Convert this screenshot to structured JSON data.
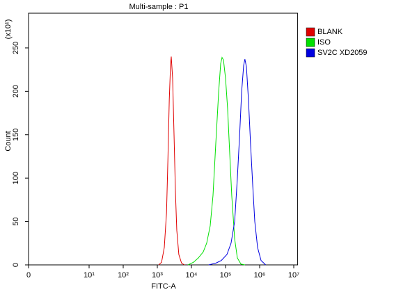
{
  "chart_data": {
    "type": "line",
    "title": "Multi-sample : P1",
    "y_multiplier": "(x10¹)",
    "x_label": "FITC-A",
    "y_label": "Count",
    "xscale": "log",
    "xlim": [
      0,
      13000000
    ],
    "xticks": [
      0,
      {
        "value": 10,
        "label": "10¹"
      },
      {
        "value": 100,
        "label": "10²"
      },
      {
        "value": 1000,
        "label": "10³"
      },
      {
        "value": 10000,
        "label": "10⁴"
      },
      {
        "value": 100000,
        "label": "10⁵"
      },
      {
        "value": 1000000,
        "label": "10⁶"
      },
      {
        "value": 10000000,
        "label": "10⁷"
      }
    ],
    "ylim": [
      0,
      290
    ],
    "yticks": [
      0,
      50,
      100,
      150,
      200,
      250
    ],
    "grid": false,
    "legend": "right",
    "series": [
      {
        "name": "BLANK",
        "color": "#e00000",
        "x": [
          1100,
          1330,
          1600,
          1860,
          2040,
          2240,
          2450,
          2560,
          2810,
          3090,
          3390,
          3720,
          4270,
          5140,
          6250
        ],
        "values": [
          0,
          3,
          20,
          60,
          120,
          190,
          232,
          240,
          215,
          150,
          85,
          40,
          12,
          2,
          0
        ]
      },
      {
        "name": "ISO",
        "color": "#00e000",
        "x": [
          7900,
          11500,
          15900,
          22200,
          28000,
          35500,
          42900,
          51800,
          63000,
          72000,
          79000,
          87000,
          100000,
          115000,
          132000,
          152000,
          185000,
          222000,
          282000,
          370000
        ],
        "values": [
          0,
          3,
          8,
          15,
          25,
          45,
          80,
          140,
          200,
          232,
          239,
          236,
          215,
          180,
          130,
          80,
          30,
          8,
          1,
          0
        ]
      },
      {
        "name": "SV2C XD2059",
        "color": "#0000e0",
        "x": [
          32000,
          52000,
          75000,
          110000,
          145000,
          185000,
          222000,
          259000,
          297000,
          340000,
          370000,
          410000,
          470000,
          540000,
          630000,
          720000,
          870000,
          1100000,
          1510000
        ],
        "values": [
          0,
          2,
          5,
          12,
          25,
          50,
          100,
          150,
          200,
          230,
          237,
          228,
          190,
          140,
          90,
          50,
          20,
          5,
          0
        ]
      }
    ]
  }
}
